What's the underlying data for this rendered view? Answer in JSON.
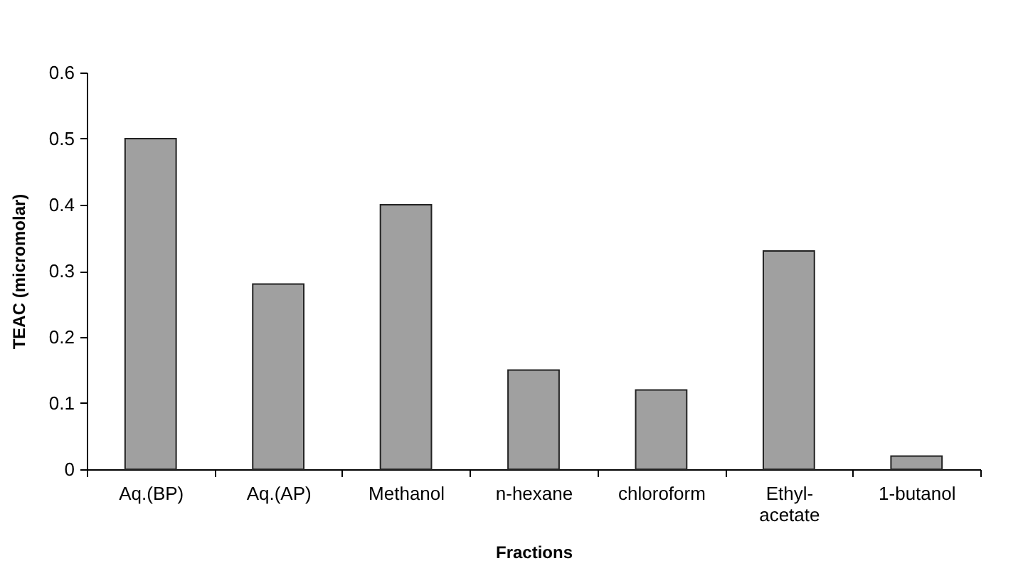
{
  "chart_data": {
    "type": "bar",
    "xlabel": "Fractions",
    "ylabel": "TEAC (micromolar)",
    "categories": [
      "Aq.(BP)",
      "Aq.(AP)",
      "Methanol",
      "n-hexane",
      "chloroform",
      "Ethyl-\nacetate",
      "1-butanol"
    ],
    "values": [
      0.5,
      0.28,
      0.4,
      0.15,
      0.12,
      0.33,
      0.02
    ],
    "color": "#a0a0a0",
    "ylim": [
      0,
      0.6
    ],
    "yticks": [
      0,
      0.1,
      0.2,
      0.3,
      0.4,
      0.5,
      0.6
    ],
    "grid": false
  }
}
